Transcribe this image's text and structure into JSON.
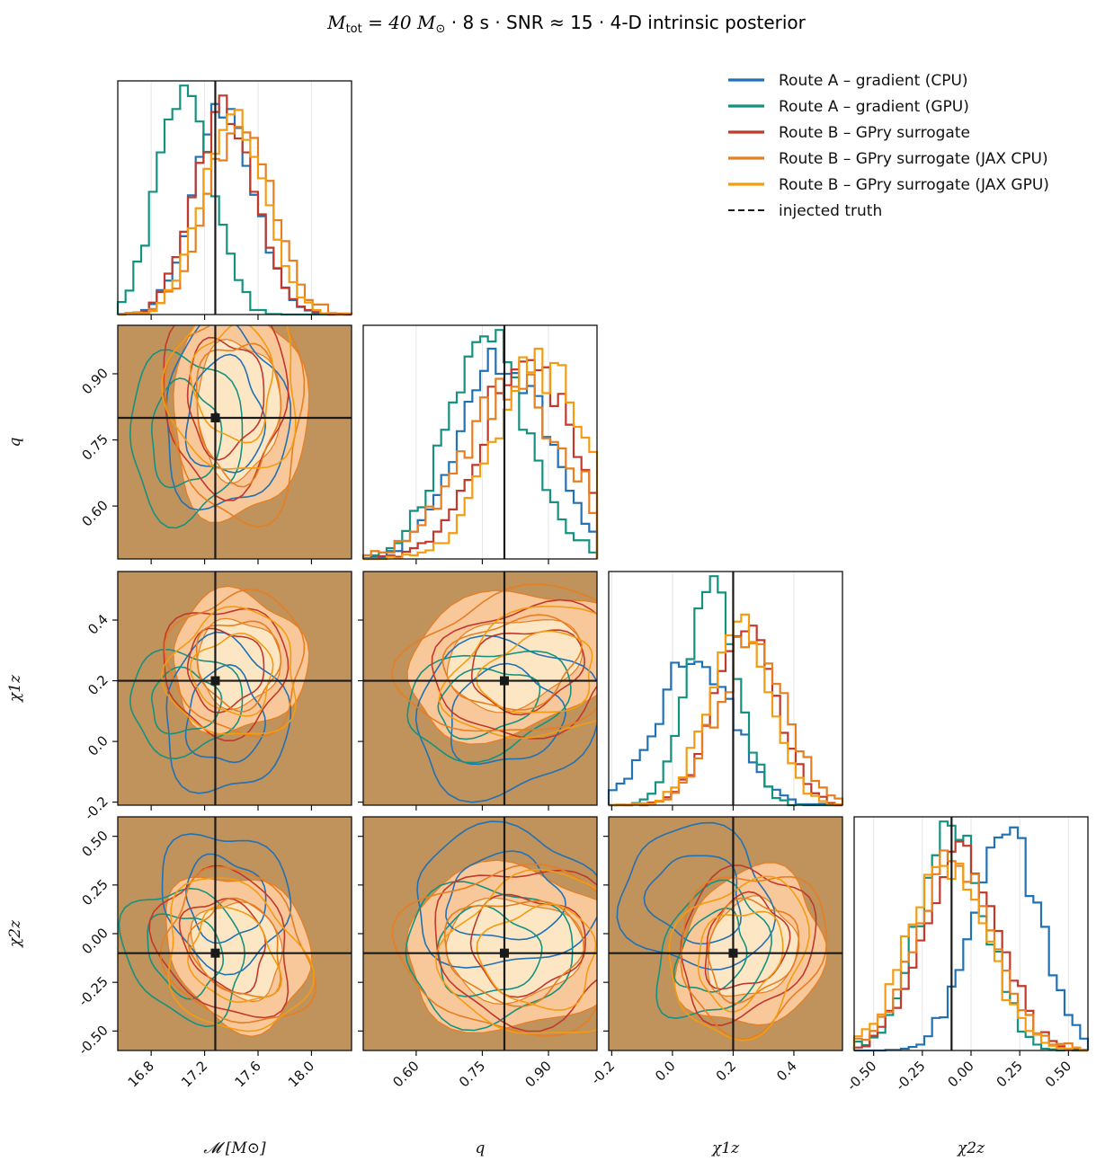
{
  "figure": {
    "title_main": "M",
    "title_sub": "tot",
    "title_mid": " = 40 M",
    "title_sun": "⊙",
    "title_rest": "   ·   8 s   ·   SNR ≈ 15   ·   4-D intrinsic posterior"
  },
  "colors": {
    "route_a_cpu": "#2171b5",
    "route_a_gpu": "#14927f",
    "route_b": "#c0392b",
    "route_b_jax_cpu": "#e67e22",
    "route_b_jax_gpu": "#f39c12",
    "truth": "#1a1a1a",
    "panel_fill": "#c0925c",
    "contour_fill_inner": "#fde6c4",
    "contour_fill_outer": "#f8c89a"
  },
  "legend": {
    "placement": "upper-right",
    "items": [
      {
        "label": "Route A – gradient (CPU)",
        "color": "#2171b5",
        "style": "solid"
      },
      {
        "label": "Route A – gradient (GPU)",
        "color": "#14927f",
        "style": "solid"
      },
      {
        "label": "Route B – GPry surrogate",
        "color": "#c0392b",
        "style": "solid"
      },
      {
        "label": "Route B – GPry surrogate (JAX CPU)",
        "color": "#e67e22",
        "style": "solid"
      },
      {
        "label": "Route B – GPry surrogate (JAX GPU)",
        "color": "#f39c12",
        "style": "solid"
      },
      {
        "label": "injected truth",
        "color": "#1a1a1a",
        "style": "dashed"
      }
    ]
  },
  "chart_data": {
    "type": "corner",
    "parameters": [
      {
        "key": "mc",
        "label": "𝓜 [M⊙]",
        "range": [
          16.55,
          18.3
        ],
        "ticks": [
          "16.8",
          "17.2",
          "17.6",
          "18.0"
        ],
        "truth": 17.28
      },
      {
        "key": "q",
        "label": "q",
        "range": [
          0.48,
          1.01
        ],
        "ticks": [
          "0.60",
          "0.75",
          "0.90"
        ],
        "truth": 0.8
      },
      {
        "key": "chi1z",
        "label": "χ1z",
        "range": [
          -0.21,
          0.56
        ],
        "ticks": [
          "-0.2",
          "0.0",
          "0.2",
          "0.4"
        ],
        "truth": 0.2
      },
      {
        "key": "chi2z",
        "label": "χ2z",
        "range": [
          -0.6,
          0.6
        ],
        "ticks": [
          "-0.50",
          "-0.25",
          "0.00",
          "0.25",
          "0.50"
        ],
        "truth": -0.1
      }
    ],
    "series": [
      {
        "name": "Route A – gradient (CPU)",
        "mean": [
          17.35,
          0.8,
          0.08,
          0.18
        ],
        "sd": [
          0.22,
          0.1,
          0.12,
          0.17
        ]
      },
      {
        "name": "Route A – gradient (GPU)",
        "mean": [
          17.05,
          0.76,
          0.13,
          -0.1
        ],
        "sd": [
          0.2,
          0.09,
          0.08,
          0.17
        ]
      },
      {
        "name": "Route B – GPry surrogate",
        "mean": [
          17.35,
          0.85,
          0.24,
          -0.05
        ],
        "sd": [
          0.22,
          0.1,
          0.1,
          0.19
        ]
      },
      {
        "name": "Route B – GPry surrogate (JAX CPU)",
        "mean": [
          17.45,
          0.82,
          0.26,
          -0.08
        ],
        "sd": [
          0.24,
          0.12,
          0.11,
          0.2
        ]
      },
      {
        "name": "Route B – GPry surrogate (JAX GPU)",
        "mean": [
          17.42,
          0.88,
          0.22,
          -0.12
        ],
        "sd": [
          0.23,
          0.1,
          0.1,
          0.2
        ]
      }
    ],
    "grid": true
  }
}
